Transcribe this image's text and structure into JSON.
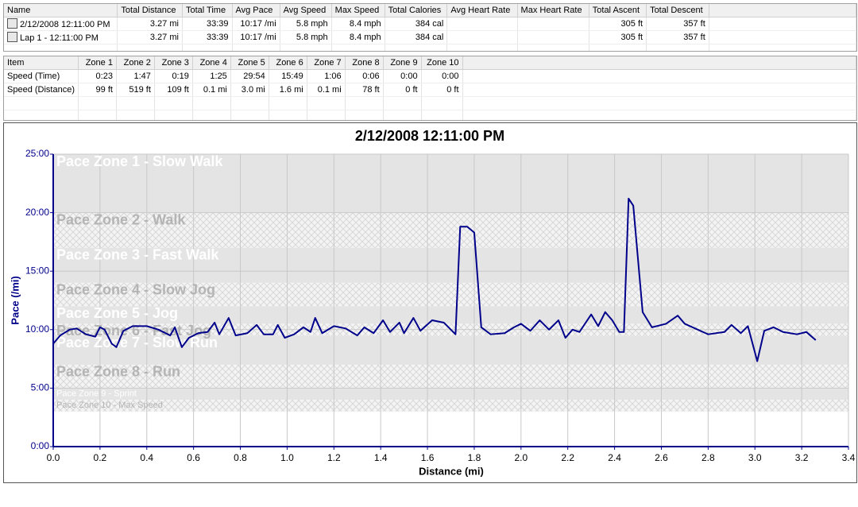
{
  "tables": {
    "laps": {
      "columns": [
        "Name",
        "Total Distance",
        "Total Time",
        "Avg Pace",
        "Avg Speed",
        "Max Speed",
        "Total Calories",
        "Avg Heart Rate",
        "Max Heart Rate",
        "Total Ascent",
        "Total Descent"
      ],
      "rows": [
        [
          "2/12/2008 12:11:00 PM",
          "3.27 mi",
          "33:39",
          "10:17 /mi",
          "5.8 mph",
          "8.4 mph",
          "384 cal",
          null,
          null,
          "305 ft",
          "357 ft"
        ],
        [
          "Lap 1 - 12:11:00 PM",
          "3.27 mi",
          "33:39",
          "10:17 /mi",
          "5.8 mph",
          "8.4 mph",
          "384 cal",
          null,
          null,
          "305 ft",
          "357 ft"
        ]
      ]
    },
    "zones": {
      "columns": [
        "Item",
        "Zone 1",
        "Zone 2",
        "Zone 3",
        "Zone 4",
        "Zone 5",
        "Zone 6",
        "Zone 7",
        "Zone 8",
        "Zone 9",
        "Zone 10"
      ],
      "rows": [
        [
          "Speed (Time)",
          "0:23",
          "1:47",
          "0:19",
          "1:25",
          "29:54",
          "15:49",
          "1:06",
          "0:06",
          "0:00",
          "0:00"
        ],
        [
          "Speed (Distance)",
          "99 ft",
          "519 ft",
          "109 ft",
          "0.1 mi",
          "3.0 mi",
          "1.6 mi",
          "0.1 mi",
          "78 ft",
          "0 ft",
          "0 ft"
        ]
      ]
    }
  },
  "chart_data": {
    "type": "line",
    "title": "2/12/2008 12:11:00 PM",
    "x_label": "Distance (mi)",
    "y_label": "Pace (/mi)",
    "xlim": [
      0,
      3.4
    ],
    "xticks": [
      {
        "value": 0,
        "label": "0.0"
      },
      0.2,
      0.4,
      0.6,
      0.8,
      {
        "value": 1,
        "label": "1.0"
      },
      1.2,
      1.4,
      1.6,
      1.8,
      {
        "value": 2,
        "label": "2.0"
      },
      2.2,
      2.4,
      2.6,
      2.8,
      {
        "value": 3,
        "label": "3.0"
      },
      3.2,
      3.4
    ],
    "ylim": [
      0,
      25
    ],
    "yticks": [
      {
        "value": 0,
        "label": "0:00"
      },
      {
        "value": 5,
        "label": "5:00"
      },
      {
        "value": 10,
        "label": "10:00"
      },
      {
        "value": 15,
        "label": "15:00"
      },
      {
        "value": 20,
        "label": "20:00"
      },
      {
        "value": 25,
        "label": "25:00"
      }
    ],
    "grid": true,
    "zones": [
      {
        "name": "Pace Zone 1 - Slow Walk",
        "from": 20,
        "to": 25
      },
      {
        "name": "Pace Zone 2 - Walk",
        "from": 17,
        "to": 20
      },
      {
        "name": "Pace Zone 3 - Fast Walk",
        "from": 14,
        "to": 17
      },
      {
        "name": "Pace Zone 4 - Slow Jog",
        "from": 12,
        "to": 14
      },
      {
        "name": "Pace Zone 5 - Jog",
        "from": 10.5,
        "to": 12
      },
      {
        "name": "Pace Zone 6 - Fast Jog",
        "from": 9.5,
        "to": 10.5
      },
      {
        "name": "Pace Zone 7 - Slow Run",
        "from": 7,
        "to": 9.5
      },
      {
        "name": "Pace Zone 8 - Run",
        "from": 5,
        "to": 7
      },
      {
        "name": "Pace Zone 9 - Sprint",
        "from": 4,
        "to": 5
      },
      {
        "name": "Pace Zone 10 - Max Speed",
        "from": 3,
        "to": 4
      }
    ],
    "x": [
      0,
      0.03,
      0.07,
      0.1,
      0.14,
      0.18,
      0.2,
      0.22,
      0.25,
      0.27,
      0.3,
      0.34,
      0.4,
      0.45,
      0.5,
      0.52,
      0.55,
      0.58,
      0.62,
      0.66,
      0.69,
      0.71,
      0.75,
      0.78,
      0.83,
      0.87,
      0.9,
      0.94,
      0.96,
      0.99,
      1.03,
      1.07,
      1.1,
      1.12,
      1.15,
      1.2,
      1.25,
      1.3,
      1.33,
      1.37,
      1.41,
      1.44,
      1.48,
      1.5,
      1.54,
      1.57,
      1.62,
      1.67,
      1.72,
      1.74,
      1.77,
      1.8,
      1.83,
      1.87,
      1.93,
      1.97,
      2.0,
      2.04,
      2.08,
      2.12,
      2.16,
      2.19,
      2.22,
      2.25,
      2.3,
      2.33,
      2.36,
      2.39,
      2.42,
      2.44,
      2.46,
      2.48,
      2.52,
      2.56,
      2.62,
      2.67,
      2.7,
      2.8,
      2.87,
      2.9,
      2.94,
      2.97,
      3.01,
      3.04,
      3.08,
      3.12,
      3.18,
      3.22,
      3.26
    ],
    "series": [
      {
        "color": "#00008b",
        "values": [
          8.8,
          9.5,
          10.0,
          10.1,
          9.6,
          9.4,
          10.2,
          10.0,
          8.8,
          8.5,
          9.9,
          10.3,
          10.3,
          10.0,
          9.5,
          10.2,
          8.5,
          9.3,
          9.7,
          9.8,
          10.6,
          9.6,
          11.0,
          9.5,
          9.7,
          10.4,
          9.6,
          9.6,
          10.4,
          9.3,
          9.6,
          10.2,
          9.8,
          11.0,
          9.7,
          10.3,
          10.1,
          9.5,
          10.2,
          9.7,
          10.8,
          9.8,
          10.6,
          9.7,
          11.0,
          9.9,
          10.8,
          10.6,
          9.6,
          18.8,
          18.8,
          18.3,
          10.2,
          9.6,
          9.7,
          10.2,
          10.5,
          9.9,
          10.8,
          10.0,
          10.8,
          9.3,
          10.0,
          9.8,
          11.3,
          10.3,
          11.5,
          10.8,
          9.8,
          9.8,
          21.2,
          20.6,
          11.5,
          10.2,
          10.5,
          11.2,
          10.5,
          9.6,
          9.8,
          10.4,
          9.7,
          10.3,
          7.3,
          9.9,
          10.2,
          9.8,
          9.6,
          9.8,
          9.1
        ]
      }
    ]
  }
}
